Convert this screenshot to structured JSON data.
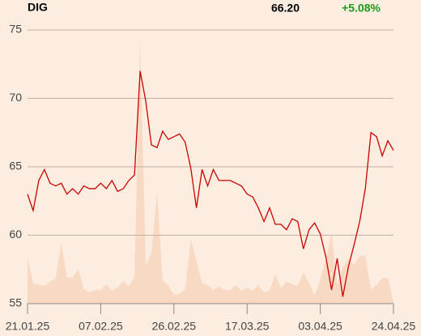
{
  "chart_data": {
    "type": "line",
    "title": "DIG",
    "price": "66.20",
    "change": "+5.08%",
    "change_color": "#1a9c1a",
    "categories": [
      "21.01.25",
      null,
      null,
      null,
      null,
      null,
      null,
      null,
      null,
      null,
      null,
      null,
      null,
      "07.02.25",
      null,
      null,
      null,
      null,
      null,
      null,
      null,
      null,
      null,
      null,
      null,
      null,
      "26.02.25",
      null,
      null,
      null,
      null,
      null,
      null,
      null,
      null,
      null,
      null,
      null,
      null,
      "17.03.25",
      null,
      null,
      null,
      null,
      null,
      null,
      null,
      null,
      null,
      null,
      null,
      null,
      "03.04.25",
      null,
      null,
      null,
      null,
      null,
      null,
      null,
      null,
      null,
      null,
      null,
      null,
      "24.04.25"
    ],
    "series": [
      {
        "color": "#cc0000",
        "values": [
          63.0,
          61.8,
          64.0,
          64.8,
          63.8,
          63.6,
          63.8,
          63.0,
          63.4,
          63.0,
          63.6,
          63.4,
          63.4,
          63.8,
          63.4,
          64.0,
          63.2,
          63.4,
          64.0,
          64.4,
          72.0,
          69.8,
          66.6,
          66.4,
          67.6,
          67.0,
          67.2,
          67.4,
          66.8,
          64.9,
          62.0,
          64.8,
          63.6,
          64.8,
          64.0,
          64.0,
          64.0,
          63.8,
          63.6,
          63.0,
          62.8,
          62.0,
          61.0,
          62.0,
          60.8,
          60.8,
          60.4,
          61.2,
          61.0,
          59.0,
          60.4,
          60.9,
          60.1,
          58.4,
          56.0,
          58.3,
          55.5,
          57.7,
          59.3,
          61.0,
          63.4,
          67.5,
          67.2,
          65.8,
          66.9,
          66.2
        ]
      },
      {
        "color": "#f8d9c4",
        "axis": "y2",
        "values": [
          16.9,
          7.4,
          6.8,
          6.5,
          8.0,
          9.2,
          22.2,
          9.5,
          9.5,
          12.7,
          5.3,
          4.1,
          5.0,
          5.0,
          7.1,
          4.7,
          5.9,
          8.3,
          6.2,
          9.8,
          96.2,
          13.9,
          18.3,
          40.5,
          8.6,
          6.5,
          3.3,
          3.6,
          5.3,
          23.4,
          15.7,
          7.4,
          6.8,
          5.0,
          6.2,
          5.0,
          5.0,
          6.8,
          4.7,
          5.9,
          4.7,
          6.8,
          4.1,
          4.7,
          10.9,
          5.9,
          8.0,
          7.1,
          6.5,
          11.5,
          7.4,
          3.0,
          8.9,
          16.3,
          26.0,
          6.8,
          13.3,
          16.3,
          14.2,
          17.5,
          17.5,
          5.3,
          6.8,
          9.2,
          9.5,
          0.6
        ]
      }
    ],
    "ylim": [
      55,
      75
    ],
    "yticks": [
      55,
      60,
      65,
      70,
      75
    ],
    "y2lim": [
      0,
      100
    ],
    "grid": true
  }
}
